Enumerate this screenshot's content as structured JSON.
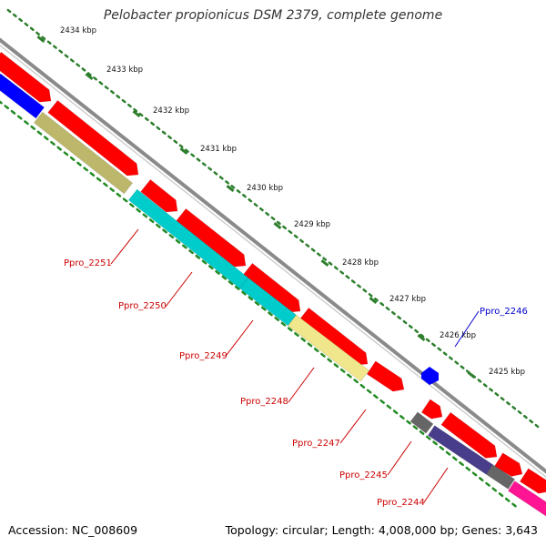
{
  "title": "Pelobacter propionicus DSM 2379, complete genome",
  "accession": "Accession: NC_008609",
  "summary": "Topology: circular; Length: 4,008,000 bp; Genes: 3,643",
  "colors": {
    "backbone": "#8a8a8a",
    "forward_cds": "#ff0000",
    "reverse_cds": "#0000ff",
    "ruler_ticks": "#2d7f2d",
    "outer_ticks": "#228b22",
    "label_line_red": "#cc0000",
    "label_line_blue": "#0000cc",
    "cog_olive": "#bdb76b",
    "cog_cyan": "#00cccc",
    "cog_khaki": "#f0e68c",
    "cog_grey": "#666666",
    "cog_navy": "#483d8b",
    "cog_magenta": "#ff1493"
  },
  "scale_labels": [
    "2434 kbp",
    "2433 kbp",
    "2432 kbp",
    "2431 kbp",
    "2430 kbp",
    "2429 kbp",
    "2428 kbp",
    "2427 kbp",
    "2426 kbp",
    "2425 kbp"
  ],
  "gene_labels": [
    {
      "text": "Ppro_2251",
      "strand": "forward"
    },
    {
      "text": "Ppro_2250",
      "strand": "forward"
    },
    {
      "text": "Ppro_2249",
      "strand": "forward"
    },
    {
      "text": "Ppro_2248",
      "strand": "forward"
    },
    {
      "text": "Ppro_2247",
      "strand": "forward"
    },
    {
      "text": "Ppro_2245",
      "strand": "forward"
    },
    {
      "text": "Ppro_2244",
      "strand": "forward"
    },
    {
      "text": "Ppro_2246",
      "strand": "reverse"
    }
  ]
}
